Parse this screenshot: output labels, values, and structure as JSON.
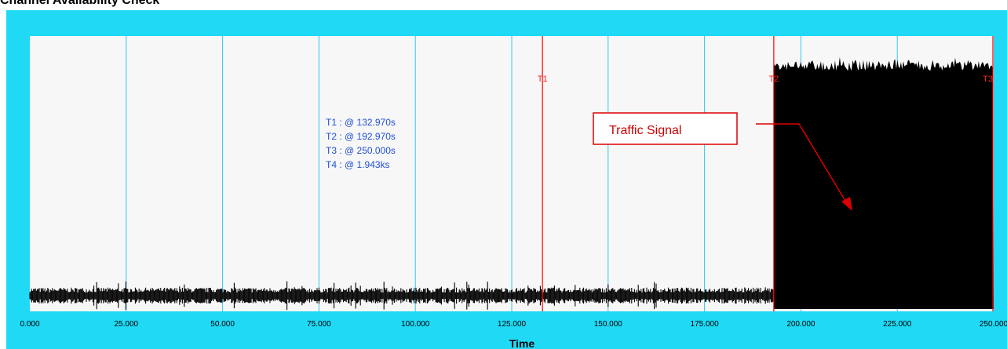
{
  "title": "Channel Availability Check",
  "colors": {
    "frame": "#1fd9f5",
    "plot_bg": "#f7f7f7",
    "grid": "#33c8ea",
    "cursor": "#ff0000",
    "signal": "#000000",
    "readout": "#1f4fd6",
    "annotation": "#cc0000"
  },
  "readouts": [
    "T1 : @ 132.970s",
    "T2 : @ 192.970s",
    "T3 : @ 250.000s",
    "T4 : @ 1.943ks"
  ],
  "annotation": {
    "text": "Traffic Signal"
  },
  "chart_data": {
    "type": "line",
    "xlabel": "Time",
    "ylabel": "",
    "xlim": [
      0,
      250
    ],
    "x_ticks": [
      "0.000",
      "25.000",
      "50.000",
      "75.000",
      "100.000",
      "125.000",
      "150.000",
      "175.000",
      "200.000",
      "225.000",
      "250.000"
    ],
    "grid": true,
    "cursors": [
      {
        "name": "T1",
        "x": 132.97
      },
      {
        "name": "T2",
        "x": 192.97
      },
      {
        "name": "T3",
        "x": 250.0
      }
    ],
    "series": [
      {
        "segments": [
          {
            "x_start": 0,
            "x_end": 192.97,
            "level": "low",
            "min": 0.02,
            "max": 0.08
          },
          {
            "x_start": 192.97,
            "x_end": 250,
            "level": "high",
            "min": 0.0,
            "max": 0.92
          }
        ]
      }
    ]
  }
}
